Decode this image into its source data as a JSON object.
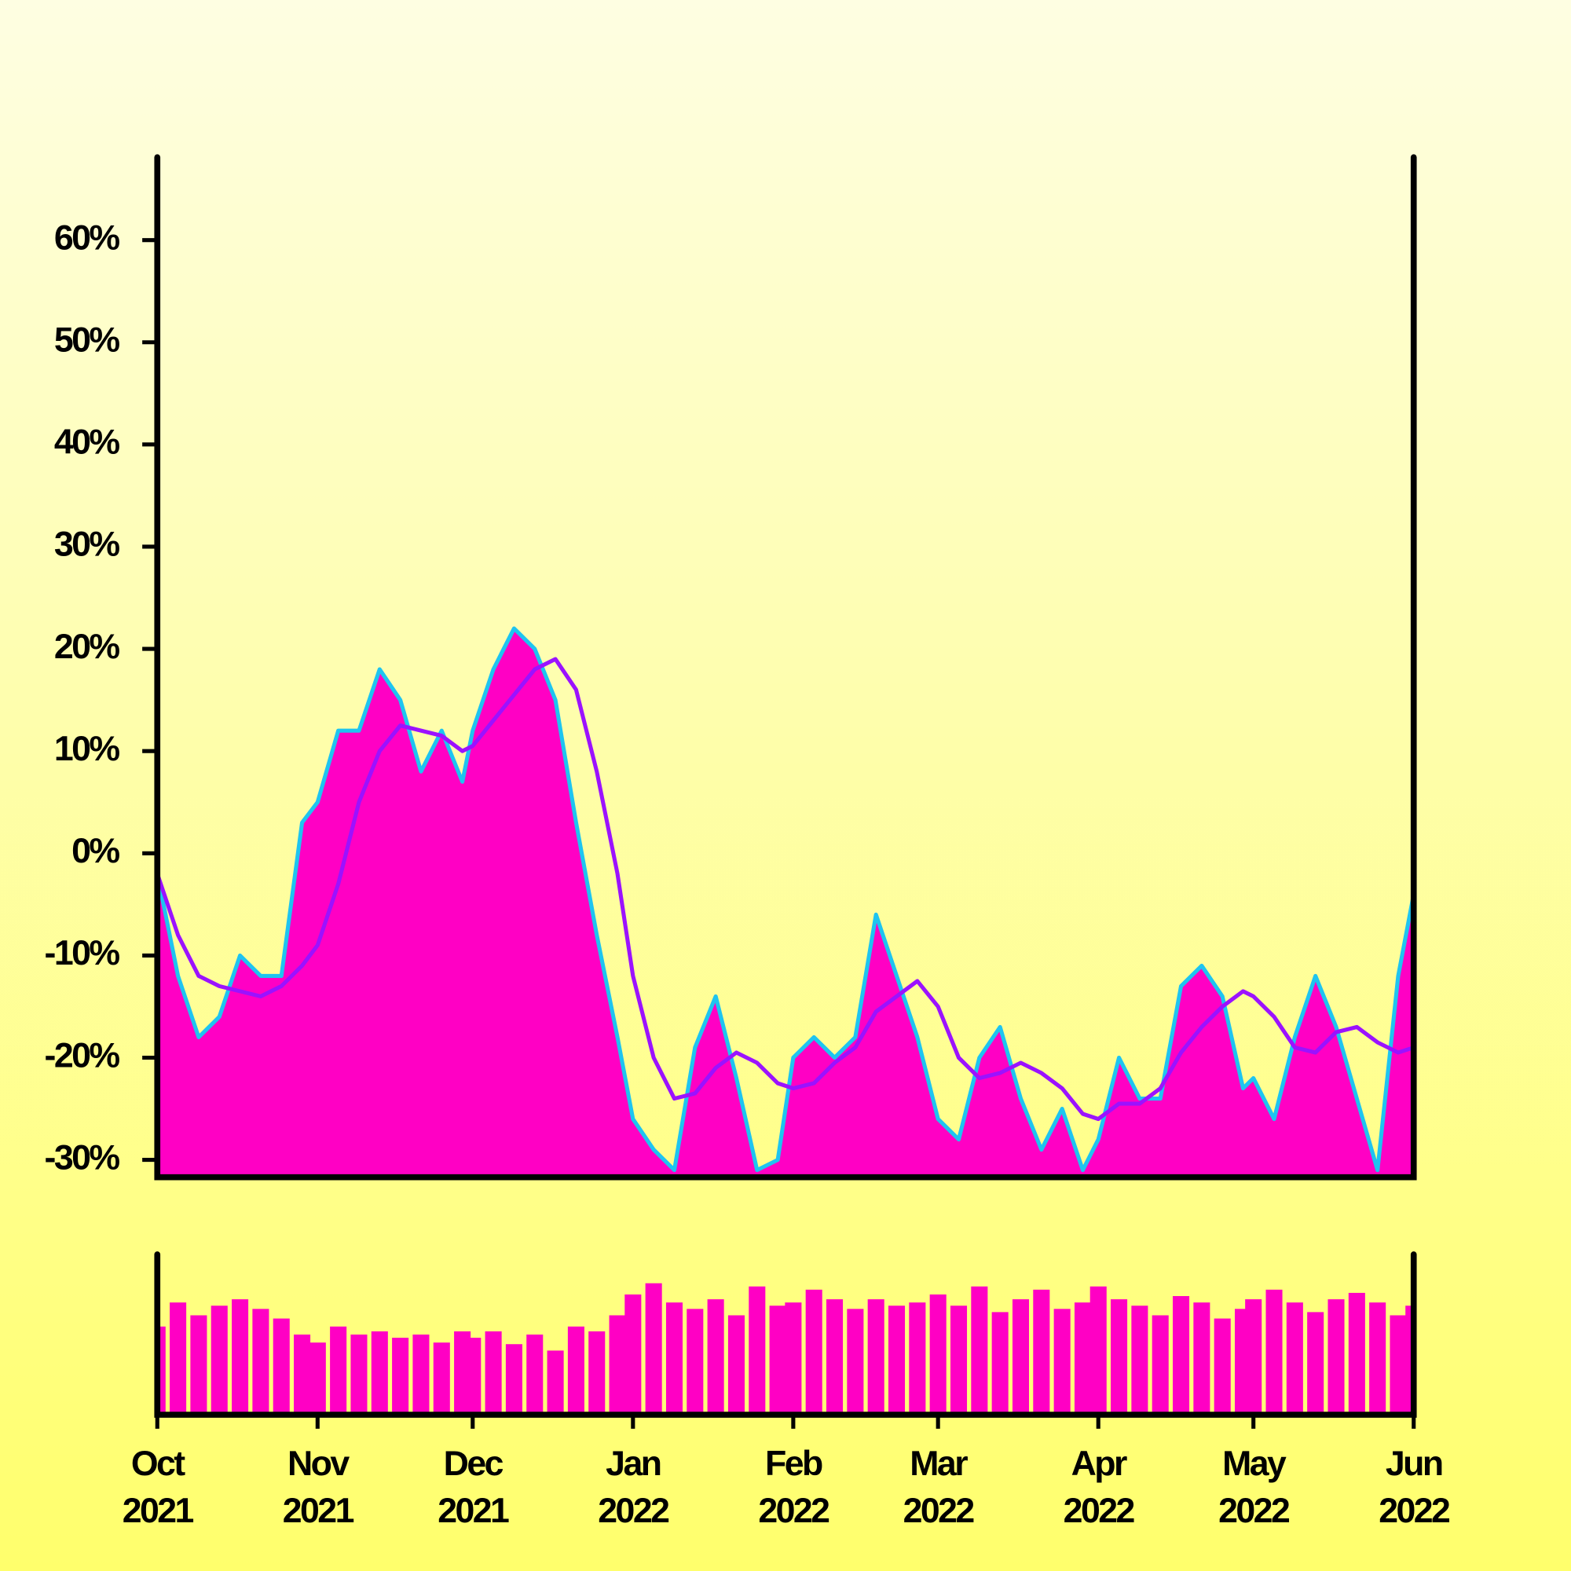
{
  "chart_data": [
    {
      "type": "area",
      "x": [
        "2021-10-01",
        "2021-10-05",
        "2021-10-09",
        "2021-10-13",
        "2021-10-17",
        "2021-10-21",
        "2021-10-25",
        "2021-10-29",
        "2021-11-01",
        "2021-11-05",
        "2021-11-09",
        "2021-11-13",
        "2021-11-17",
        "2021-11-21",
        "2021-11-25",
        "2021-11-29",
        "2021-12-01",
        "2021-12-05",
        "2021-12-09",
        "2021-12-13",
        "2021-12-17",
        "2021-12-21",
        "2021-12-25",
        "2021-12-29",
        "2022-01-01",
        "2022-01-05",
        "2022-01-09",
        "2022-01-13",
        "2022-01-17",
        "2022-01-21",
        "2022-01-25",
        "2022-01-29",
        "2022-02-01",
        "2022-02-05",
        "2022-02-09",
        "2022-02-13",
        "2022-02-17",
        "2022-02-21",
        "2022-02-25",
        "2022-03-01",
        "2022-03-05",
        "2022-03-09",
        "2022-03-13",
        "2022-03-17",
        "2022-03-21",
        "2022-03-25",
        "2022-03-29",
        "2022-04-01",
        "2022-04-05",
        "2022-04-09",
        "2022-04-13",
        "2022-04-17",
        "2022-04-21",
        "2022-04-25",
        "2022-04-29",
        "2022-05-01",
        "2022-05-05",
        "2022-05-09",
        "2022-05-13",
        "2022-05-17",
        "2022-05-21",
        "2022-05-25",
        "2022-05-29",
        "2022-06-01"
      ],
      "series": [
        {
          "type": "area",
          "color": "#ff00c4",
          "edge_color": "#1ec4f0",
          "values": [
            -2,
            -12,
            -18,
            -16,
            -10,
            -12,
            -12,
            3,
            5,
            12,
            12,
            18,
            15,
            8,
            12,
            7,
            12,
            18,
            22,
            20,
            15,
            3,
            -8,
            -18,
            -26,
            -29,
            -31,
            -19,
            -14,
            -22,
            -31,
            -30,
            -20,
            -18,
            -20,
            -18,
            -6,
            -12,
            -18,
            -26,
            -28,
            -20,
            -17,
            -24,
            -29,
            -25,
            -31,
            -28,
            -20,
            -24,
            -24,
            -13,
            -11,
            -14,
            -23,
            -22,
            -26,
            -18,
            -12,
            -17,
            -24,
            -31,
            -12,
            -4
          ]
        },
        {
          "type": "line",
          "color": "#9b12ff",
          "values": [
            -2,
            -8,
            -12,
            -13,
            -13.5,
            -14,
            -13,
            -11,
            -9,
            -3,
            5,
            10,
            12.5,
            12,
            11.5,
            10,
            10.5,
            13,
            15.5,
            18,
            19,
            16,
            8,
            -2,
            -12,
            -20,
            -24,
            -23.5,
            -21,
            -19.5,
            -20.5,
            -22.5,
            -23,
            -22.5,
            -20.5,
            -19,
            -15.5,
            -14,
            -12.5,
            -15,
            -20,
            -22,
            -21.5,
            -20.5,
            -21.5,
            -23,
            -25.5,
            -26,
            -24.5,
            -24.5,
            -23,
            -19.5,
            -17,
            -15,
            -13.5,
            -14,
            -16,
            -19,
            -19.5,
            -17.5,
            -17,
            -18.5,
            -19.5,
            -19
          ]
        }
      ],
      "xlim": [
        "2021-10-01",
        "2022-06-01"
      ],
      "ylim": [
        -31.7,
        68.1
      ],
      "yticks": [
        {
          "value": -30,
          "label": "-30%"
        },
        {
          "value": -20,
          "label": "-20%"
        },
        {
          "value": -10,
          "label": "-10%"
        },
        {
          "value": 0,
          "label": "0%"
        },
        {
          "value": 10,
          "label": "10%"
        },
        {
          "value": 20,
          "label": "20%"
        },
        {
          "value": 30,
          "label": "30%"
        },
        {
          "value": 40,
          "label": "40%"
        },
        {
          "value": 50,
          "label": "50%"
        },
        {
          "value": 60,
          "label": "60%"
        }
      ]
    },
    {
      "type": "bar",
      "color": "#ff00c4",
      "x": [
        "2021-10-01",
        "2021-10-05",
        "2021-10-09",
        "2021-10-13",
        "2021-10-17",
        "2021-10-21",
        "2021-10-25",
        "2021-10-29",
        "2021-11-01",
        "2021-11-05",
        "2021-11-09",
        "2021-11-13",
        "2021-11-17",
        "2021-11-21",
        "2021-11-25",
        "2021-11-29",
        "2021-12-01",
        "2021-12-05",
        "2021-12-09",
        "2021-12-13",
        "2021-12-17",
        "2021-12-21",
        "2021-12-25",
        "2021-12-29",
        "2022-01-01",
        "2022-01-05",
        "2022-01-09",
        "2022-01-13",
        "2022-01-17",
        "2022-01-21",
        "2022-01-25",
        "2022-01-29",
        "2022-02-01",
        "2022-02-05",
        "2022-02-09",
        "2022-02-13",
        "2022-02-17",
        "2022-02-21",
        "2022-02-25",
        "2022-03-01",
        "2022-03-05",
        "2022-03-09",
        "2022-03-13",
        "2022-03-17",
        "2022-03-21",
        "2022-03-25",
        "2022-03-29",
        "2022-04-01",
        "2022-04-05",
        "2022-04-09",
        "2022-04-13",
        "2022-04-17",
        "2022-04-21",
        "2022-04-25",
        "2022-04-29",
        "2022-05-01",
        "2022-05-05",
        "2022-05-09",
        "2022-05-13",
        "2022-05-17",
        "2022-05-21",
        "2022-05-25",
        "2022-05-29",
        "2022-06-01"
      ],
      "values": [
        55,
        70,
        62,
        68,
        72,
        66,
        60,
        50,
        45,
        55,
        50,
        52,
        48,
        50,
        45,
        52,
        48,
        52,
        44,
        50,
        40,
        55,
        52,
        62,
        75,
        82,
        70,
        66,
        72,
        62,
        80,
        68,
        70,
        78,
        72,
        66,
        72,
        68,
        70,
        75,
        68,
        80,
        64,
        72,
        78,
        66,
        70,
        80,
        72,
        68,
        62,
        74,
        70,
        60,
        66,
        72,
        78,
        70,
        64,
        72,
        76,
        70,
        62,
        68
      ],
      "xlim": [
        "2021-10-01",
        "2022-06-01"
      ],
      "ylim": [
        0,
        100
      ],
      "xticks": [
        {
          "value": "2021-10-01",
          "label": [
            "Oct",
            "2021"
          ]
        },
        {
          "value": "2021-11-01",
          "label": [
            "Nov",
            "2021"
          ]
        },
        {
          "value": "2021-12-01",
          "label": [
            "Dec",
            "2021"
          ]
        },
        {
          "value": "2022-01-01",
          "label": [
            "Jan",
            "2022"
          ]
        },
        {
          "value": "2022-02-01",
          "label": [
            "Feb",
            "2022"
          ]
        },
        {
          "value": "2022-03-01",
          "label": [
            "Mar",
            "2022"
          ]
        },
        {
          "value": "2022-04-01",
          "label": [
            "Apr",
            "2022"
          ]
        },
        {
          "value": "2022-05-01",
          "label": [
            "May",
            "2022"
          ]
        },
        {
          "value": "2022-06-01",
          "label": [
            "Jun",
            "2022"
          ]
        }
      ]
    }
  ]
}
